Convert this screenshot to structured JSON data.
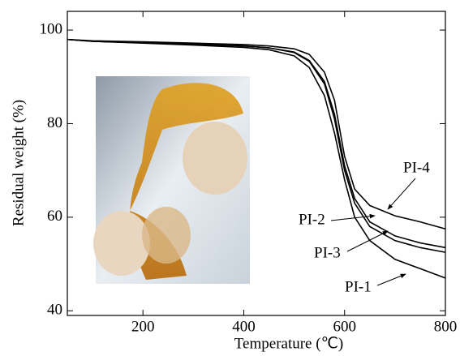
{
  "chart_data": {
    "type": "line",
    "xlabel": "Temperature (℃)",
    "ylabel": "Residual weight (%)",
    "x": [
      50,
      100,
      200,
      300,
      400,
      450,
      500,
      530,
      560,
      580,
      600,
      620,
      650,
      700,
      750,
      800
    ],
    "series": [
      {
        "name": "PI-1",
        "color": "#000000",
        "values": [
          98,
          97.6,
          97.2,
          96.8,
          96.3,
          95.8,
          94.5,
          92,
          86,
          78,
          68,
          60,
          55,
          51,
          49,
          47
        ]
      },
      {
        "name": "PI-2",
        "color": "#000000",
        "values": [
          98,
          97.6,
          97.3,
          97,
          96.6,
          96.2,
          95.3,
          93.5,
          89,
          82,
          71,
          64,
          59,
          56,
          54.5,
          53.5
        ]
      },
      {
        "name": "PI-3",
        "color": "#000000",
        "values": [
          98,
          97.6,
          97.3,
          97,
          96.6,
          96.2,
          95.2,
          93.3,
          88.5,
          81,
          70,
          63,
          58,
          55,
          53.5,
          52.5
        ]
      },
      {
        "name": "PI-4",
        "color": "#000000",
        "values": [
          98,
          97.7,
          97.5,
          97.2,
          96.9,
          96.6,
          96,
          94.8,
          91,
          85,
          73,
          66,
          62.5,
          60.3,
          59,
          57.5
        ]
      }
    ],
    "xlim": [
      50,
      800
    ],
    "xticks": [
      200,
      400,
      600,
      800
    ],
    "ylim": [
      39,
      104
    ],
    "yticks": [
      40,
      60,
      80,
      100
    ]
  }
}
